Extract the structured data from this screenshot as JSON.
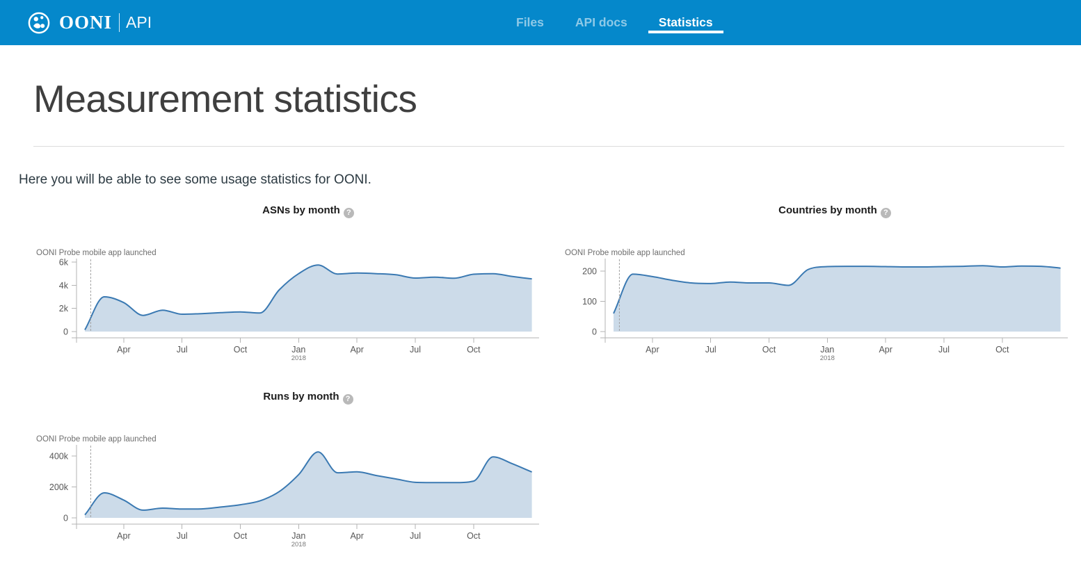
{
  "theme": {
    "header_bg": "#0588cb",
    "line_color": "#3a79b2",
    "fill_color": "#ccdbe9",
    "axis_color": "#b3b3b3",
    "tick_text_color": "#575757",
    "sub_tick_text_color": "#777777",
    "annotation_color": "#6e6e6e",
    "dashed_line_color": "#a0a0a0"
  },
  "icons": {
    "help": "?"
  },
  "header": {
    "brand": {
      "name": "OONI",
      "product": "API"
    },
    "nav": [
      {
        "label": "Files",
        "active": false
      },
      {
        "label": "API docs",
        "active": false
      },
      {
        "label": "Statistics",
        "active": true
      }
    ]
  },
  "page": {
    "title": "Measurement statistics",
    "intro": "Here you will be able to see some usage statistics for OONI."
  },
  "chart_data": [
    {
      "type": "area",
      "title": "ASNs by month",
      "annotation": "OONI Probe mobile app launched",
      "annotation_month_offset": 0.3,
      "x_months": [
        "2017-02",
        "2017-03",
        "2017-04",
        "2017-05",
        "2017-06",
        "2017-07",
        "2017-08",
        "2017-09",
        "2017-10",
        "2017-11",
        "2017-12",
        "2018-01",
        "2018-02",
        "2018-03",
        "2018-04",
        "2018-05",
        "2018-06",
        "2018-07",
        "2018-08",
        "2018-09",
        "2018-10",
        "2018-11",
        "2018-12",
        "2019-01"
      ],
      "values": [
        150,
        3000,
        2500,
        1400,
        1850,
        1500,
        1550,
        1630,
        1700,
        1600,
        3600,
        5000,
        5750,
        4970,
        5050,
        5000,
        4900,
        4620,
        4700,
        4600,
        4950,
        5000,
        4750,
        4550
      ],
      "ylim": [
        0,
        6000
      ],
      "y_ticks": [
        {
          "value": 0,
          "label": "0"
        },
        {
          "value": 2000,
          "label": "2k"
        },
        {
          "value": 4000,
          "label": "4k"
        },
        {
          "value": 6000,
          "label": "6k"
        }
      ],
      "x_ticks": [
        {
          "index": 2,
          "label": "Apr"
        },
        {
          "index": 5,
          "label": "Jul"
        },
        {
          "index": 8,
          "label": "Oct"
        },
        {
          "index": 11,
          "label": "Jan",
          "sublabel": "2018"
        },
        {
          "index": 14,
          "label": "Apr"
        },
        {
          "index": 17,
          "label": "Jul"
        },
        {
          "index": 20,
          "label": "Oct"
        }
      ]
    },
    {
      "type": "area",
      "title": "Countries by month",
      "annotation": "OONI Probe mobile app launched",
      "annotation_month_offset": 0.3,
      "x_months": [
        "2017-02",
        "2017-03",
        "2017-04",
        "2017-05",
        "2017-06",
        "2017-07",
        "2017-08",
        "2017-09",
        "2017-10",
        "2017-11",
        "2017-12",
        "2018-01",
        "2018-02",
        "2018-03",
        "2018-04",
        "2018-05",
        "2018-06",
        "2018-07",
        "2018-08",
        "2018-09",
        "2018-10",
        "2018-11",
        "2018-12",
        "2019-01"
      ],
      "values": [
        60,
        190,
        182,
        170,
        161,
        159,
        164,
        161,
        161,
        153,
        205,
        215,
        216,
        216,
        215,
        214,
        214,
        215,
        216,
        218,
        214,
        217,
        216,
        210
      ],
      "ylim": [
        0,
        230
      ],
      "y_ticks": [
        {
          "value": 0,
          "label": "0"
        },
        {
          "value": 100,
          "label": "100"
        },
        {
          "value": 200,
          "label": "200"
        }
      ],
      "x_ticks": [
        {
          "index": 2,
          "label": "Apr"
        },
        {
          "index": 5,
          "label": "Jul"
        },
        {
          "index": 8,
          "label": "Oct"
        },
        {
          "index": 11,
          "label": "Jan",
          "sublabel": "2018"
        },
        {
          "index": 14,
          "label": "Apr"
        },
        {
          "index": 17,
          "label": "Jul"
        },
        {
          "index": 20,
          "label": "Oct"
        }
      ]
    },
    {
      "type": "area",
      "title": "Runs by month",
      "annotation": "OONI Probe mobile app launched",
      "annotation_month_offset": 0.3,
      "x_months": [
        "2017-02",
        "2017-03",
        "2017-04",
        "2017-05",
        "2017-06",
        "2017-07",
        "2017-08",
        "2017-09",
        "2017-10",
        "2017-11",
        "2017-12",
        "2018-01",
        "2018-02",
        "2018-03",
        "2018-04",
        "2018-05",
        "2018-06",
        "2018-07",
        "2018-08",
        "2018-09",
        "2018-10",
        "2018-11",
        "2018-12",
        "2019-01"
      ],
      "values": [
        20000,
        162000,
        115000,
        50000,
        63000,
        57000,
        58000,
        70000,
        85000,
        110000,
        170000,
        280000,
        427000,
        292000,
        298000,
        274000,
        252000,
        230000,
        228000,
        228000,
        238000,
        395000,
        350000,
        297000
      ],
      "ylim": [
        0,
        450000
      ],
      "y_ticks": [
        {
          "value": 0,
          "label": "0"
        },
        {
          "value": 200000,
          "label": "200k"
        },
        {
          "value": 400000,
          "label": "400k"
        }
      ],
      "x_ticks": [
        {
          "index": 2,
          "label": "Apr"
        },
        {
          "index": 5,
          "label": "Jul"
        },
        {
          "index": 8,
          "label": "Oct"
        },
        {
          "index": 11,
          "label": "Jan",
          "sublabel": "2018"
        },
        {
          "index": 14,
          "label": "Apr"
        },
        {
          "index": 17,
          "label": "Jul"
        },
        {
          "index": 20,
          "label": "Oct"
        }
      ]
    }
  ]
}
